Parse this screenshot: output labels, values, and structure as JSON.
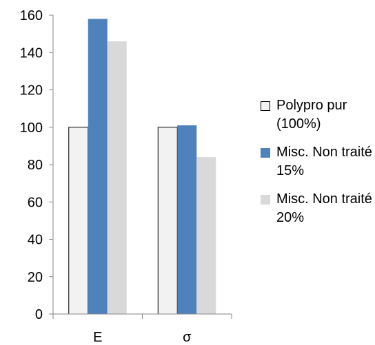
{
  "chart_data": {
    "type": "bar",
    "categories": [
      "E",
      "σ"
    ],
    "series": [
      {
        "name": "Polypro pur (100%)",
        "values": [
          100,
          100
        ],
        "color": "#f2f2f2",
        "stroke": "#000000"
      },
      {
        "name": "Misc. Non traité 15%",
        "values": [
          158,
          101
        ],
        "color": "#4f81bd",
        "stroke": "none"
      },
      {
        "name": "Misc. Non traité 20%",
        "values": [
          146,
          84
        ],
        "color": "#d9d9d9",
        "stroke": "none"
      }
    ],
    "ylim": [
      0,
      160
    ],
    "yticks": [
      "0",
      "20",
      "40",
      "60",
      "80",
      "100",
      "120",
      "140",
      "160"
    ],
    "title": "",
    "xlabel": "",
    "ylabel": "",
    "grid": false,
    "legend_position": "right"
  }
}
